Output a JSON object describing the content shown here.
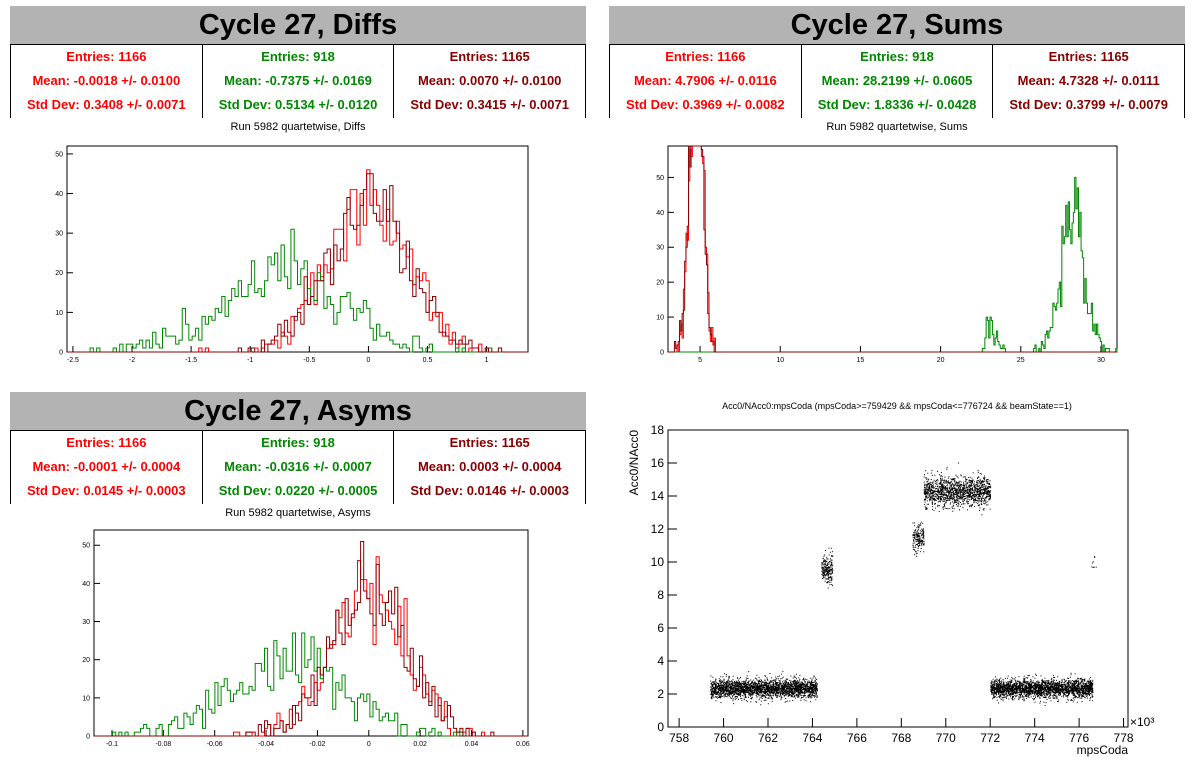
{
  "colors": {
    "red": "#ff0000",
    "green": "#008800",
    "darkred": "#880000",
    "title_bg": "#b3b3b3"
  },
  "panels": {
    "diffs": {
      "title": "Cycle 27, Diffs",
      "subtitle": "Run 5982 quartetwise, Diffs",
      "stats": [
        {
          "entries": "Entries: 1166",
          "mean": "Mean: -0.0018 +/- 0.0100",
          "std": "Std Dev: 0.3408 +/- 0.0071"
        },
        {
          "entries": "Entries: 918",
          "mean": "Mean: -0.7375 +/- 0.0169",
          "std": "Std Dev: 0.5134 +/- 0.0120"
        },
        {
          "entries": "Entries: 1165",
          "mean": "Mean: 0.0070 +/- 0.0100",
          "std": "Std Dev: 0.3415 +/- 0.0071"
        }
      ]
    },
    "sums": {
      "title": "Cycle 27, Sums",
      "subtitle": "Run 5982 quartetwise, Sums",
      "stats": [
        {
          "entries": "Entries: 1166",
          "mean": "Mean: 4.7906 +/- 0.0116",
          "std": "Std Dev: 0.3969 +/- 0.0082"
        },
        {
          "entries": "Entries: 918",
          "mean": "Mean: 28.2199 +/- 0.0605",
          "std": "Std Dev: 1.8336 +/- 0.0428"
        },
        {
          "entries": "Entries: 1165",
          "mean": "Mean: 4.7328 +/- 0.0111",
          "std": "Std Dev: 0.3799 +/- 0.0079"
        }
      ]
    },
    "asyms": {
      "title": "Cycle 27, Asyms",
      "subtitle": "Run 5982 quartetwise, Asyms",
      "stats": [
        {
          "entries": "Entries: 1166",
          "mean": "Mean: -0.0001 +/- 0.0004",
          "std": "Std Dev: 0.0145 +/- 0.0003"
        },
        {
          "entries": "Entries: 918",
          "mean": "Mean: -0.0316 +/- 0.0007",
          "std": "Std Dev: 0.0220 +/- 0.0005"
        },
        {
          "entries": "Entries: 1165",
          "mean": "Mean: 0.0003 +/- 0.0004",
          "std": "Std Dev: 0.0146 +/- 0.0003"
        }
      ]
    },
    "scatter": {
      "title": "Acc0/NAcc0:mpsCoda (mpsCoda>=759429 && mpsCoda<=776724 && beamState==1)",
      "xlabel": "mpsCoda",
      "ylabel": "Acc0/NAcc0",
      "exponent": "×10³"
    }
  },
  "chart_data": [
    {
      "type": "histogram",
      "id": "diffs",
      "xlim": [
        -2.55,
        1.35
      ],
      "ylim": [
        0,
        52
      ],
      "xticks": [
        -2.5,
        -2,
        -1.5,
        -1,
        -0.5,
        0,
        0.5,
        1
      ],
      "xtick_labels": [
        "-2.5",
        "-2",
        "-1.5",
        "-1",
        "-0.5",
        "0",
        "0.5",
        "1"
      ],
      "yticks": [
        0,
        10,
        20,
        30,
        40,
        50
      ],
      "series": [
        {
          "color": "red",
          "mean": -0.0018,
          "std": 0.3408,
          "entries": 1166,
          "bins": 140
        },
        {
          "color": "green",
          "mean": -0.7375,
          "std": 0.5134,
          "entries": 918,
          "bins": 140
        },
        {
          "color": "darkred",
          "mean": 0.007,
          "std": 0.3415,
          "entries": 1165,
          "bins": 140
        }
      ]
    },
    {
      "type": "histogram",
      "id": "sums",
      "xlim": [
        3.0,
        31.0
      ],
      "ylim": [
        0,
        59
      ],
      "xticks": [
        5,
        10,
        15,
        20,
        25,
        30
      ],
      "xtick_labels": [
        "5",
        "10",
        "15",
        "20",
        "25",
        "30"
      ],
      "yticks": [
        0,
        10,
        20,
        30,
        40,
        50
      ],
      "series": [
        {
          "color": "red",
          "mean": 4.7906,
          "std": 0.3969,
          "entries": 1166,
          "binw": 0.08
        },
        {
          "color": "green",
          "mean": 28.2199,
          "std": 0.75,
          "entries": 918,
          "binw": 0.08,
          "extra": [
            {
              "mean": 23.1,
              "std": 0.35,
              "entries": 75
            }
          ]
        },
        {
          "color": "darkred",
          "mean": 4.7328,
          "std": 0.3799,
          "entries": 1165,
          "binw": 0.08
        }
      ]
    },
    {
      "type": "histogram",
      "id": "asyms",
      "xlim": [
        -0.107,
        0.062
      ],
      "ylim": [
        0,
        54
      ],
      "xticks": [
        -0.1,
        -0.08,
        -0.06,
        -0.04,
        -0.02,
        0,
        0.02,
        0.04,
        0.06
      ],
      "xtick_labels": [
        "-0.1",
        "-0.08",
        "-0.06",
        "-0.04",
        "-0.02",
        "0",
        "0.02",
        "0.04",
        "0.06"
      ],
      "yticks": [
        0,
        10,
        20,
        30,
        40,
        50
      ],
      "series": [
        {
          "color": "red",
          "mean": -0.0001,
          "std": 0.0145,
          "entries": 1166,
          "bins": 140
        },
        {
          "color": "green",
          "mean": -0.0316,
          "std": 0.022,
          "entries": 918,
          "bins": 140
        },
        {
          "color": "darkred",
          "mean": 0.0003,
          "std": 0.0146,
          "entries": 1165,
          "bins": 140
        }
      ]
    },
    {
      "type": "scatter",
      "id": "scatter",
      "xlim": [
        757.5,
        778.2
      ],
      "ylim": [
        0,
        18
      ],
      "xticks": [
        758,
        760,
        762,
        764,
        766,
        768,
        770,
        772,
        774,
        776,
        778
      ],
      "xtick_labels": [
        "758",
        "760",
        "762",
        "764",
        "766",
        "768",
        "770",
        "772",
        "774",
        "776",
        "778"
      ],
      "yticks": [
        0,
        2,
        4,
        6,
        8,
        10,
        12,
        14,
        16,
        18
      ],
      "ytick_labels": [
        "0",
        "2",
        "4",
        "6",
        "8",
        "10",
        "12",
        "14",
        "16",
        "18"
      ],
      "clusters": [
        {
          "x": [
            759.4,
            764.2
          ],
          "y": 2.35,
          "spread": 0.55,
          "n": 2600
        },
        {
          "x": [
            764.4,
            764.9
          ],
          "y": 9.6,
          "spread": 0.9,
          "n": 220
        },
        {
          "x": [
            768.5,
            769.0
          ],
          "y": 11.5,
          "spread": 0.9,
          "n": 180
        },
        {
          "x": [
            769.0,
            772.0
          ],
          "y": 14.3,
          "spread": 0.9,
          "n": 1400
        },
        {
          "x": [
            772.0,
            776.6
          ],
          "y": 2.35,
          "spread": 0.55,
          "n": 2600
        },
        {
          "x": [
            776.55,
            776.75
          ],
          "y": 9.8,
          "spread": 0.9,
          "n": 8
        }
      ]
    }
  ]
}
